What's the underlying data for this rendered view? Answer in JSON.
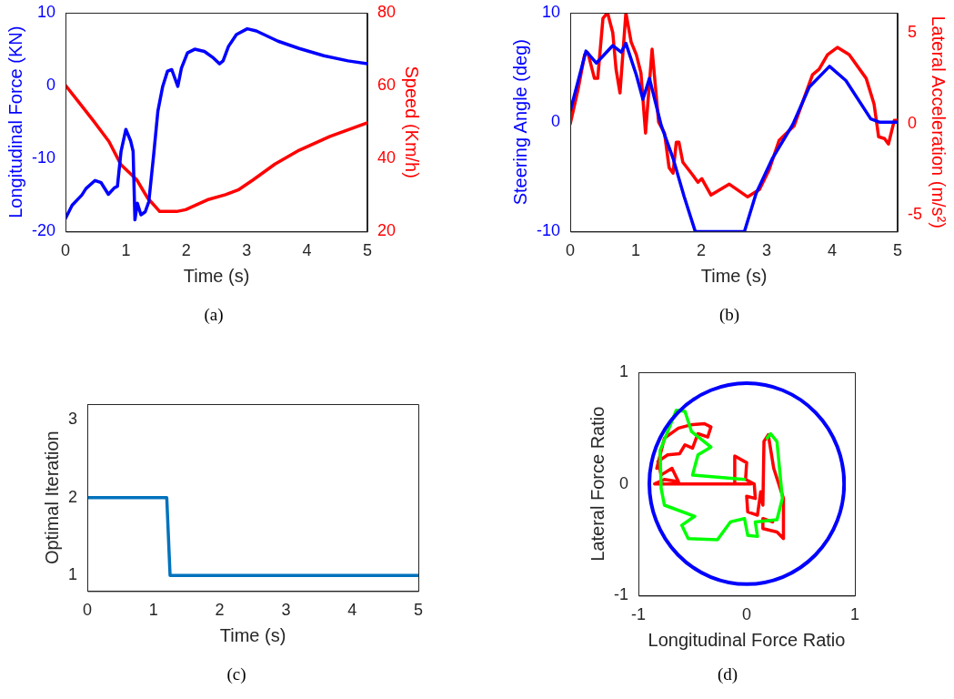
{
  "chart_data": [
    {
      "type": "line",
      "xlabel": "Time (s)",
      "ylabel": "Longitudinal Force (KN)",
      "y2label": "Speed (Km/h)",
      "annotations": [
        "(a)"
      ],
      "xlim": [
        0,
        5
      ],
      "xticks": [
        0,
        1,
        2,
        3,
        4,
        5
      ],
      "ylim": [
        -20,
        10
      ],
      "yticks": [
        -20,
        -10,
        0,
        10
      ],
      "y2lim": [
        20,
        80
      ],
      "y2ticks": [
        20,
        40,
        60,
        80
      ],
      "series": [
        {
          "color": "#0000ff",
          "x": [
            0,
            0.11,
            0.27,
            0.34,
            0.49,
            0.59,
            0.71,
            0.81,
            0.86,
            0.92,
            1.0,
            1.08,
            1.12,
            1.15,
            1.19,
            1.25,
            1.32,
            1.38,
            1.46,
            1.53,
            1.61,
            1.69,
            1.76,
            1.86,
            1.92,
            2.02,
            2.14,
            2.3,
            2.45,
            2.55,
            2.61,
            2.7,
            2.83,
            3.01,
            3.16,
            3.52,
            3.87,
            4.28,
            4.68,
            5.0
          ],
          "values": [
            -18.2,
            -16.4,
            -15.0,
            -14.1,
            -13.0,
            -13.3,
            -14.9,
            -14.0,
            -13.8,
            -9.0,
            -6.0,
            -7.6,
            -9.0,
            -18.4,
            -16.1,
            -17.7,
            -17.3,
            -15.9,
            -9.5,
            -3.5,
            -0.1,
            2.0,
            2.2,
            -0.1,
            2.4,
            4.5,
            5.0,
            4.7,
            3.8,
            3.0,
            3.4,
            5.4,
            7.0,
            7.8,
            7.5,
            6.1,
            5.1,
            4.1,
            3.4,
            3.0
          ]
        },
        {
          "color": "#ff0000",
          "axis": "y2",
          "x": [
            0,
            0.21,
            0.47,
            0.72,
            0.92,
            1.18,
            1.36,
            1.56,
            1.84,
            1.99,
            2.35,
            2.65,
            2.86,
            3.11,
            3.47,
            3.87,
            4.38,
            5.0
          ],
          "values": [
            60.1,
            55.7,
            50.2,
            44.7,
            38.3,
            34.2,
            29.2,
            25.5,
            25.5,
            26.0,
            28.7,
            30.1,
            31.4,
            34.2,
            38.5,
            42.3,
            46.1,
            49.8
          ]
        }
      ]
    },
    {
      "type": "line",
      "xlabel": "Time (s)",
      "ylabel": "Steering Angle (deg)",
      "y2label": "Lateral Acceleration (m/s²)",
      "annotations": [
        "(b)"
      ],
      "xlim": [
        0,
        5
      ],
      "xticks": [
        0,
        1,
        2,
        3,
        4,
        5
      ],
      "ylim": [
        -10,
        10
      ],
      "yticks": [
        -10,
        0,
        10
      ],
      "y2lim": [
        -5.9,
        6.1
      ],
      "y2ticks": [
        -5,
        0,
        5
      ],
      "series": [
        {
          "color": "#0000ff",
          "x": [
            0,
            0.24,
            0.4,
            0.65,
            0.78,
            0.85,
            1.01,
            1.11,
            1.21,
            1.39,
            1.57,
            1.74,
            1.91,
            2.66,
            2.84,
            3.09,
            3.4,
            3.65,
            3.96,
            4.21,
            4.59,
            4.72,
            5
          ],
          "values": [
            1.0,
            6.5,
            5.4,
            7.0,
            6.4,
            7.2,
            4.3,
            2.1,
            4.0,
            -0.3,
            -3.3,
            -6.8,
            -10,
            -10,
            -6.5,
            -3.3,
            -0.2,
            3.2,
            5.1,
            3.8,
            0.3,
            0,
            0
          ]
        },
        {
          "color": "#ff0000",
          "axis": "y2",
          "x": [
            0,
            0.12,
            0.22,
            0.27,
            0.37,
            0.42,
            0.5,
            0.57,
            0.65,
            0.7,
            0.76,
            0.85,
            0.93,
            1.01,
            1.08,
            1.15,
            1.25,
            1.35,
            1.44,
            1.51,
            1.57,
            1.62,
            1.66,
            1.72,
            1.87,
            1.95,
            2.01,
            2.15,
            2.43,
            2.71,
            2.89,
            3.04,
            3.19,
            3.42,
            3.58,
            3.7,
            3.8,
            3.93,
            4.08,
            4.26,
            4.52,
            4.64,
            4.71,
            4.8,
            4.86,
            4.95,
            5
          ],
          "values": [
            0,
            1.9,
            3.8,
            3.9,
            2.5,
            2.5,
            5.8,
            6.1,
            5.0,
            3.0,
            1.7,
            6.1,
            4.5,
            3.8,
            2.8,
            -0.5,
            4.1,
            0.1,
            -0.5,
            -2.4,
            -2.7,
            -1.0,
            -1.0,
            -2.1,
            -2.8,
            -3.2,
            -3.0,
            -3.9,
            -3.3,
            -4.0,
            -3.6,
            -2.5,
            -0.9,
            -0.1,
            1.5,
            2.7,
            3.0,
            3.8,
            4.2,
            3.8,
            2.5,
            1.1,
            -0.7,
            -0.8,
            -1.1,
            0.2,
            0.2
          ]
        }
      ]
    },
    {
      "type": "line",
      "xlabel": "Time (s)",
      "ylabel": "Optimal Iteration",
      "annotations": [
        "(c)"
      ],
      "xlim": [
        0,
        5
      ],
      "xticks": [
        0,
        1,
        2,
        3,
        4,
        5
      ],
      "ylim": [
        0.8,
        3.2
      ],
      "yticks": [
        1,
        2,
        3
      ],
      "series": [
        {
          "color": "#0072bd",
          "x": [
            0,
            1.2,
            1.25,
            5
          ],
          "values": [
            2,
            2,
            1,
            1
          ]
        }
      ]
    },
    {
      "type": "line",
      "xlabel": "Longitudinal Force Ratio",
      "ylabel": "Lateral Force Ratio",
      "annotations": [
        "(d)"
      ],
      "xlim": [
        -1,
        1
      ],
      "xticks": [
        -1,
        0,
        1
      ],
      "ylim": [
        -1,
        1
      ],
      "yticks": [
        -1,
        0,
        1
      ],
      "series": [
        {
          "color": "#00ff00",
          "x": [
            -0.02,
            -0.5,
            -0.45,
            -0.33,
            -0.51,
            -0.57,
            -0.65,
            -0.8,
            -0.79,
            -0.76,
            -0.48,
            -0.6,
            -0.54,
            -0.27,
            -0.15,
            -0.02,
            0.01,
            0.1,
            0.08,
            0.28,
            0.33,
            0.28,
            0.22,
            0.19
          ],
          "values": [
            0.04,
            0.08,
            0.26,
            0.33,
            0.47,
            0.65,
            0.66,
            0.3,
            -0.04,
            -0.19,
            -0.29,
            -0.37,
            -0.49,
            -0.5,
            -0.34,
            -0.31,
            -0.46,
            -0.47,
            -0.34,
            -0.32,
            -0.13,
            0.38,
            0.45,
            0.41
          ]
        },
        {
          "color": "#ff0000",
          "x": [
            -0.83,
            -0.76,
            -0.63,
            -0.51,
            -0.39,
            -0.33,
            -0.36,
            -0.45,
            -0.5,
            -0.57,
            -0.62,
            -0.73,
            -0.82,
            -0.79,
            -0.69,
            -0.63,
            -0.76,
            -0.85,
            0.04,
            -0.11,
            -0.11,
            0.0,
            -0.01,
            0.07,
            0.08,
            0.0,
            0.01,
            0.1,
            0.13,
            0.15,
            0.16,
            0.2,
            0.25,
            0.34,
            0.34,
            0.28,
            0.15,
            0.15,
            0.24
          ],
          "values": [
            0.14,
            0.41,
            0.5,
            0.53,
            0.54,
            0.51,
            0.42,
            0.45,
            0.32,
            0.35,
            0.27,
            0.26,
            0.2,
            0.08,
            0.14,
            0.02,
            0.04,
            0,
            0,
            0,
            0.25,
            0.19,
            0.04,
            0,
            -0.13,
            -0.11,
            -0.25,
            -0.28,
            -0.07,
            -0.19,
            0.38,
            0.44,
            0.14,
            -0.13,
            -0.49,
            -0.43,
            -0.4,
            -0.31,
            -0.34
          ]
        }
      ]
    }
  ]
}
